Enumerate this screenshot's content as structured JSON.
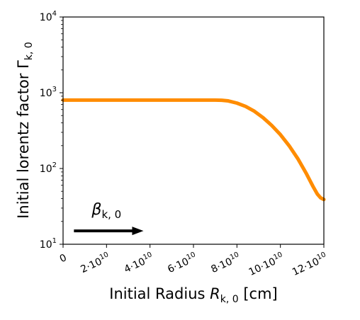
{
  "chart_data": {
    "type": "line",
    "xlabel": "Initial Radius R_{k,0} [cm]",
    "ylabel": "Initial lorentz factor Γ_{k,0}",
    "xscale": "linear",
    "yscale": "log",
    "xlim": [
      0,
      120000000000
    ],
    "ylim": [
      10,
      10000
    ],
    "grid": false,
    "x_ticks": [
      {
        "value": 0,
        "mantissa": "0",
        "exp": ""
      },
      {
        "value": 20000000000,
        "mantissa": "2·10",
        "exp": "10"
      },
      {
        "value": 40000000000,
        "mantissa": "4·10",
        "exp": "10"
      },
      {
        "value": 60000000000,
        "mantissa": "6·10",
        "exp": "10"
      },
      {
        "value": 80000000000,
        "mantissa": "8·10",
        "exp": "10"
      },
      {
        "value": 100000000000,
        "mantissa": "10·10",
        "exp": "10"
      },
      {
        "value": 120000000000,
        "mantissa": "12·10",
        "exp": "10"
      }
    ],
    "y_ticks": [
      {
        "value": 10,
        "mantissa": "10",
        "exp": "1"
      },
      {
        "value": 100,
        "mantissa": "10",
        "exp": "2"
      },
      {
        "value": 1000,
        "mantissa": "10",
        "exp": "3"
      },
      {
        "value": 10000,
        "mantissa": "10",
        "exp": "4"
      }
    ],
    "annotation": {
      "text": "β_{k,0}",
      "arrow": "right",
      "arrow_from": [
        5000000000,
        15
      ],
      "arrow_to": [
        37000000000,
        15
      ],
      "text_at": [
        20000000000,
        20
      ]
    },
    "series": [
      {
        "color": "#ff8c00",
        "x": [
          0,
          10000000000,
          20000000000,
          30000000000,
          40000000000,
          50000000000,
          60000000000,
          70000000000,
          73000000000,
          76000000000,
          80000000000,
          84000000000,
          88000000000,
          92000000000,
          96000000000,
          100000000000,
          104000000000,
          108000000000,
          112000000000,
          115000000000,
          117000000000,
          118500000000,
          120000000000
        ],
        "y": [
          800,
          800,
          800,
          800,
          800,
          800,
          800,
          800,
          795,
          780,
          730,
          660,
          570,
          470,
          370,
          280,
          200,
          135,
          85,
          58,
          46,
          41,
          39
        ]
      }
    ]
  }
}
